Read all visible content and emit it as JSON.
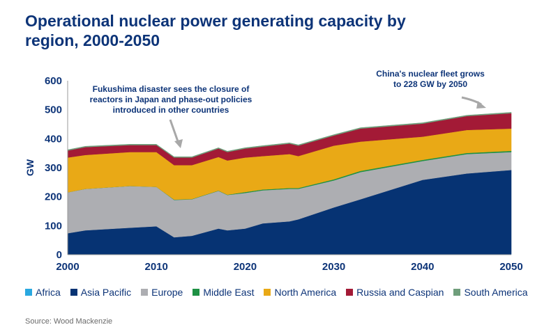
{
  "title": "Operational nuclear power generating capacity by region, 2000-2050",
  "source": "Source: Wood Mackenzie",
  "chart_data": {
    "type": "area",
    "stacked": true,
    "title": "Operational nuclear power generating capacity by region, 2000-2050",
    "xlabel": "",
    "ylabel": "GW",
    "xlim": [
      2000,
      2050
    ],
    "ylim": [
      0,
      600
    ],
    "xticks": [
      2000,
      2010,
      2020,
      2030,
      2040,
      2050
    ],
    "yticks": [
      0,
      100,
      200,
      300,
      400,
      500,
      600
    ],
    "grid": false,
    "legend": "bottom",
    "x": [
      2000,
      2002,
      2007,
      2010,
      2012,
      2014,
      2017,
      2018,
      2020,
      2022,
      2025,
      2026,
      2030,
      2033,
      2040,
      2045,
      2050
    ],
    "series": [
      {
        "name": "Africa",
        "color": "#29a8e0",
        "values": [
          2,
          2,
          2,
          2,
          2,
          2,
          2,
          2,
          2,
          2,
          2,
          2,
          2,
          2,
          2,
          2,
          2
        ]
      },
      {
        "name": "Asia Pacific",
        "color": "#063373",
        "values": [
          72,
          82,
          91,
          96,
          58,
          63,
          88,
          82,
          88,
          106,
          113,
          120,
          161,
          189,
          256,
          278,
          290
        ]
      },
      {
        "name": "Europe",
        "color": "#adaeb2",
        "values": [
          141,
          143,
          144,
          136,
          129,
          126,
          130,
          122,
          123,
          114,
          112,
          105,
          93,
          94,
          65,
          67,
          62
        ]
      },
      {
        "name": "Middle East",
        "color": "#1e9144",
        "values": [
          0,
          0,
          0,
          0,
          1,
          1,
          1,
          1,
          3,
          3,
          3,
          3,
          4,
          4,
          4,
          4,
          4
        ]
      },
      {
        "name": "North America",
        "color": "#e9a916",
        "values": [
          120,
          117,
          117,
          120,
          119,
          117,
          116,
          118,
          119,
          115,
          117,
          110,
          116,
          101,
          80,
          79,
          77
        ]
      },
      {
        "name": "Russia and Caspian",
        "color": "#a31a36",
        "values": [
          24,
          27,
          24,
          24,
          26,
          26,
          29,
          29,
          31,
          33,
          36,
          36,
          35,
          45,
          45,
          48,
          53
        ]
      },
      {
        "name": "South America",
        "color": "#6f9e7b",
        "values": [
          3,
          3,
          3,
          3,
          3,
          3,
          3,
          3,
          3,
          3,
          3,
          3,
          3,
          3,
          3,
          3,
          3
        ]
      }
    ],
    "annotations": [
      {
        "text": [
          "Fukushima disaster sees the closure of",
          "reactors in Japan and phase-out policies",
          "introduced in other countries"
        ],
        "year": 2012
      },
      {
        "text": [
          "China's nuclear fleet grows",
          "to 228 GW by 2050"
        ],
        "year": 2049
      }
    ]
  }
}
